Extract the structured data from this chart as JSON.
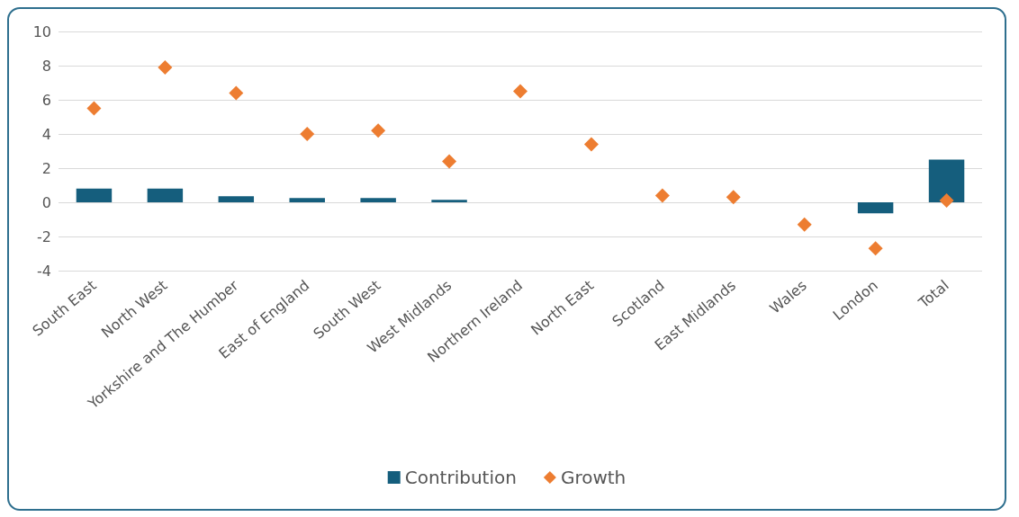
{
  "chart_data": {
    "type": "bar",
    "categories": [
      "South East",
      "North West",
      "Yorkshire and The Humber",
      "East of England",
      "South West",
      "West Midlands",
      "Northern Ireland",
      "North East",
      "Scotland",
      "East Midlands",
      "Wales",
      "London",
      "Total"
    ],
    "series": [
      {
        "name": "Contribution",
        "color": "#155e7d",
        "values": [
          0.8,
          0.8,
          0.35,
          0.25,
          0.25,
          0.15,
          null,
          null,
          null,
          null,
          null,
          -0.65,
          2.5
        ]
      },
      {
        "name": "Growth",
        "type": "scatter",
        "color": "#ed7d31",
        "marker": "diamond",
        "values": [
          5.5,
          7.9,
          6.4,
          4.0,
          4.2,
          2.4,
          6.5,
          3.4,
          0.4,
          0.3,
          -1.3,
          -2.7,
          0.1
        ]
      }
    ],
    "ylim": [
      -4,
      10
    ],
    "yticks": [
      -4,
      -2,
      0,
      2,
      4,
      6,
      8,
      10
    ],
    "grid": "y",
    "legend": "bottom"
  }
}
